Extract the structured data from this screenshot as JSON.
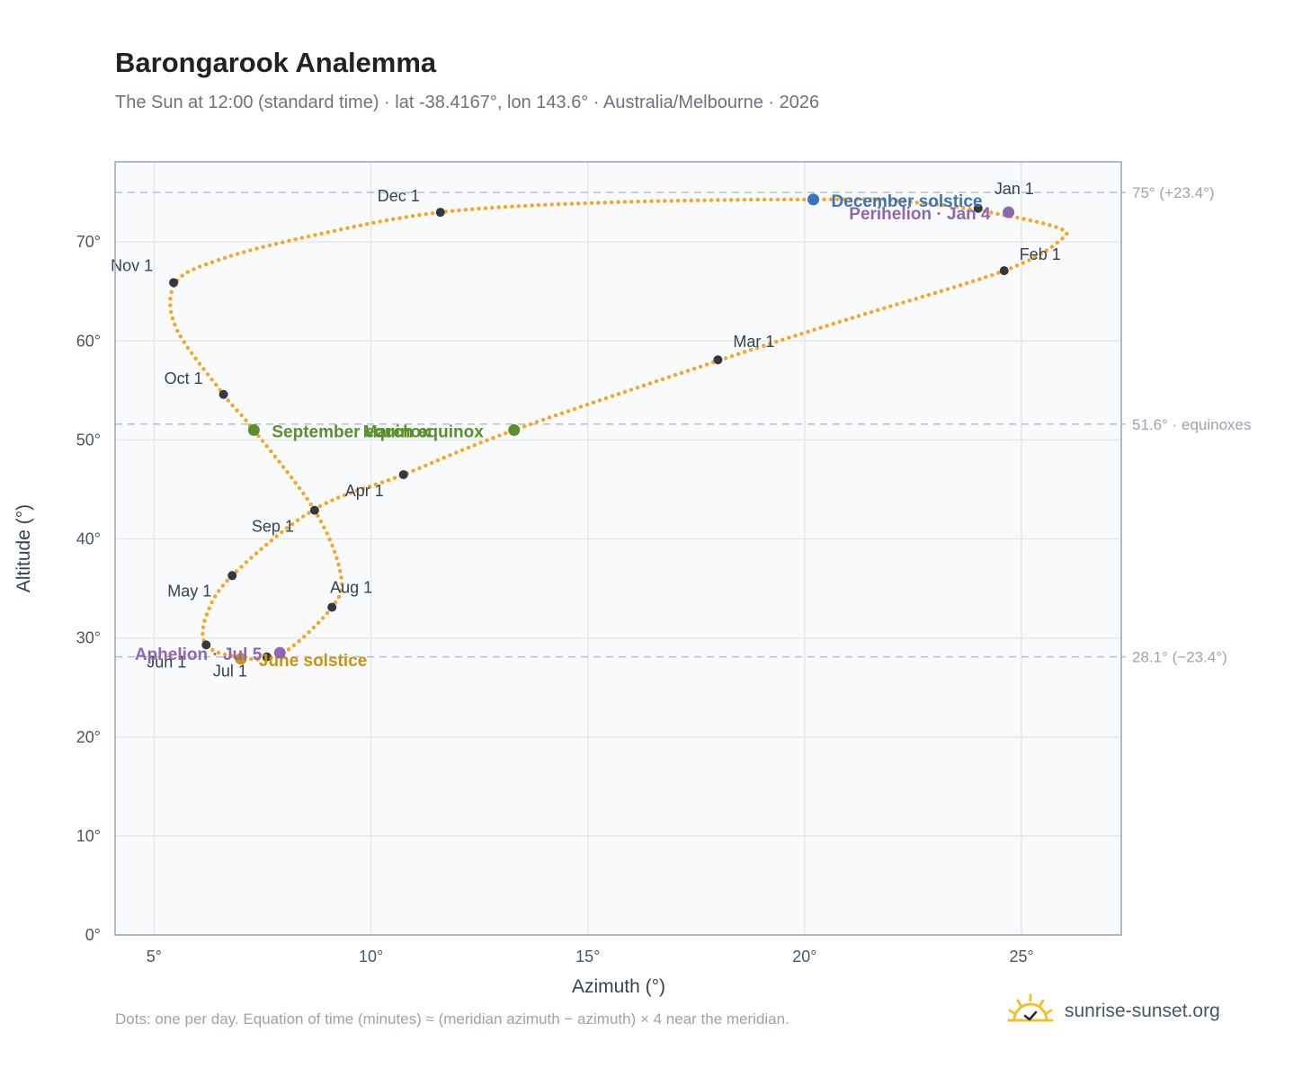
{
  "title": "Barongarook Analemma",
  "subtitle": "The Sun at 12:00 (standard time) · lat -38.4167°, lon 143.6° · Australia/Melbourne · 2026",
  "footnote": "Dots: one per day. Equation of time (minutes) ≈ (meridian azimuth − azimuth) × 4 near the meridian.",
  "brand": {
    "name": "sunrise-sunset.org",
    "icon": "sun-logo-icon"
  },
  "colors": {
    "curve": "#f5a623",
    "month_marker": "#333740",
    "december_solstice": "#3b73b9",
    "june_solstice": "#c9920f",
    "equinox": "#5a8f2e",
    "apsis": "#8e67b1",
    "reference_line": "#b8c0cc",
    "plot_background": "#f8fafc",
    "grid": "#e5e7eb"
  },
  "chart_data": {
    "type": "scatter",
    "title": "Barongarook Analemma",
    "xlabel": "Azimuth (°)",
    "ylabel": "Altitude (°)",
    "xlim": [
      4.1,
      27.3
    ],
    "ylim": [
      0,
      78.1
    ],
    "xticks": [
      {
        "value": 5,
        "label": "5°"
      },
      {
        "value": 10,
        "label": "10°"
      },
      {
        "value": 15,
        "label": "15°"
      },
      {
        "value": 20,
        "label": "20°"
      },
      {
        "value": 25,
        "label": "25°"
      }
    ],
    "yticks": [
      {
        "value": 0,
        "label": "0°"
      },
      {
        "value": 10,
        "label": "10°"
      },
      {
        "value": 20,
        "label": "20°"
      },
      {
        "value": 30,
        "label": "30°"
      },
      {
        "value": 40,
        "label": "40°"
      },
      {
        "value": 50,
        "label": "50°"
      },
      {
        "value": 60,
        "label": "60°"
      },
      {
        "value": 70,
        "label": "70°"
      }
    ],
    "grid": true,
    "reference_lines": [
      {
        "y": 75.0,
        "label": "75° (+23.4°)"
      },
      {
        "y": 51.6,
        "label": "51.6° · equinoxes"
      },
      {
        "y": 28.1,
        "label": "28.1° (−23.4°)"
      }
    ],
    "analemma_path": [
      {
        "x": 24.0,
        "y": 73.2
      },
      {
        "x": 25.8,
        "y": 71.5
      },
      {
        "x": 25.9,
        "y": 70.2
      },
      {
        "x": 24.6,
        "y": 67.1
      },
      {
        "x": 21.0,
        "y": 62.2
      },
      {
        "x": 18.0,
        "y": 58.0
      },
      {
        "x": 13.3,
        "y": 51.0
      },
      {
        "x": 10.75,
        "y": 46.5
      },
      {
        "x": 8.7,
        "y": 43.0
      },
      {
        "x": 6.8,
        "y": 36.3
      },
      {
        "x": 6.2,
        "y": 32.2
      },
      {
        "x": 6.2,
        "y": 29.3
      },
      {
        "x": 6.9,
        "y": 28.1
      },
      {
        "x": 7.9,
        "y": 28.3
      },
      {
        "x": 9.1,
        "y": 33.1
      },
      {
        "x": 9.3,
        "y": 36.5
      },
      {
        "x": 8.7,
        "y": 42.9
      },
      {
        "x": 7.3,
        "y": 51.0
      },
      {
        "x": 6.6,
        "y": 54.6
      },
      {
        "x": 5.5,
        "y": 61.4
      },
      {
        "x": 5.5,
        "y": 65.9
      },
      {
        "x": 6.5,
        "y": 68.2
      },
      {
        "x": 8.5,
        "y": 70.5
      },
      {
        "x": 11.6,
        "y": 73.0
      },
      {
        "x": 15.5,
        "y": 74.0
      },
      {
        "x": 20.2,
        "y": 74.3
      },
      {
        "x": 22.5,
        "y": 74.0
      },
      {
        "x": 24.0,
        "y": 73.2
      }
    ],
    "month_markers": [
      {
        "label": "Jan 1",
        "x": 24.0,
        "y": 73.4
      },
      {
        "label": "Feb 1",
        "x": 24.6,
        "y": 67.1
      },
      {
        "label": "Mar 1",
        "x": 18.0,
        "y": 58.1
      },
      {
        "label": "Apr 1",
        "x": 10.75,
        "y": 46.5
      },
      {
        "label": "May 1",
        "x": 6.8,
        "y": 36.3
      },
      {
        "label": "Jun 1",
        "x": 6.2,
        "y": 29.3
      },
      {
        "label": "Jul 1",
        "x": 7.6,
        "y": 28.1
      },
      {
        "label": "Aug 1",
        "x": 9.1,
        "y": 33.1
      },
      {
        "label": "Sep 1",
        "x": 8.7,
        "y": 42.9
      },
      {
        "label": "Oct 1",
        "x": 6.6,
        "y": 54.6
      },
      {
        "label": "Nov 1",
        "x": 5.45,
        "y": 65.9
      },
      {
        "label": "Dec 1",
        "x": 11.6,
        "y": 73.0
      }
    ],
    "events": [
      {
        "label": "December solstice",
        "x": 20.2,
        "y": 74.3,
        "kind": "december_solstice"
      },
      {
        "label": "June solstice",
        "x": 7.0,
        "y": 27.9,
        "kind": "june_solstice"
      },
      {
        "label": "March equinox",
        "x": 13.3,
        "y": 51.0,
        "kind": "equinox"
      },
      {
        "label": "September equinox",
        "x": 7.3,
        "y": 51.0,
        "kind": "equinox"
      },
      {
        "label": "Perihelion · Jan 4",
        "x": 24.7,
        "y": 73.0,
        "kind": "apsis"
      },
      {
        "label": "Aphelion · Jul 5",
        "x": 7.9,
        "y": 28.5,
        "kind": "apsis"
      }
    ]
  }
}
